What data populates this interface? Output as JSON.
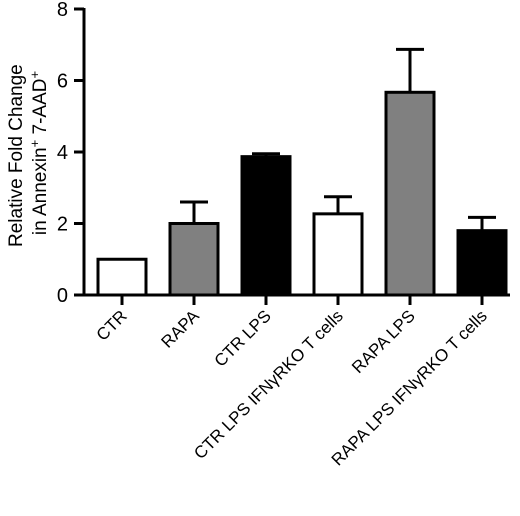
{
  "chart_data": {
    "type": "bar",
    "title": "",
    "xlabel": "",
    "ylabel": {
      "line1": "Relative Fold Change",
      "line2_prefix": "in Annexin",
      "line2_sup1": "+",
      "line2_mid": " 7-AAD",
      "line2_sup2": "+"
    },
    "ylim": [
      0,
      8
    ],
    "yticks": [
      0,
      2,
      4,
      6,
      8
    ],
    "grid": false,
    "legend": "none",
    "categories": [
      "CTR",
      "RAPA",
      "CTR LPS",
      "CTR LPS IFNγRKO T cells",
      "RAPA LPS",
      "RAPA LPS IFNγRKO T cells"
    ],
    "values": [
      1.0,
      2.0,
      3.87,
      2.27,
      5.67,
      1.8
    ],
    "error_plus": [
      0.0,
      0.6,
      0.08,
      0.48,
      1.2,
      0.37
    ],
    "bar_colors": [
      "#ffffff",
      "#808080",
      "#000000",
      "#ffffff",
      "#808080",
      "#000000"
    ]
  }
}
